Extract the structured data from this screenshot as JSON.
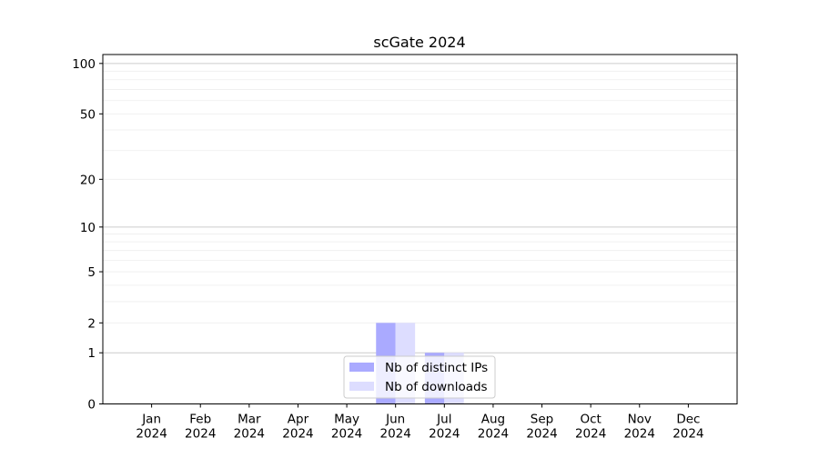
{
  "chart_data": {
    "type": "bar",
    "title": "scGate 2024",
    "xlabel": "",
    "ylabel": "",
    "categories": [
      "Jan\n2024",
      "Feb\n2024",
      "Mar\n2024",
      "Apr\n2024",
      "May\n2024",
      "Jun\n2024",
      "Jul\n2024",
      "Aug\n2024",
      "Sep\n2024",
      "Oct\n2024",
      "Nov\n2024",
      "Dec\n2024"
    ],
    "series": [
      {
        "name": "Nb of distinct IPs",
        "color": "#aaaaff",
        "values": [
          0,
          0,
          0,
          0,
          0,
          2,
          1,
          0,
          0,
          0,
          0,
          0
        ]
      },
      {
        "name": "Nb of downloads",
        "color": "#ddddff",
        "values": [
          0,
          0,
          0,
          0,
          0,
          2,
          1,
          0,
          0,
          0,
          0,
          0
        ]
      }
    ],
    "yscale": "log(1+y)",
    "yticks": [
      0,
      1,
      2,
      5,
      10,
      20,
      50,
      100
    ],
    "ylim": [
      0,
      113
    ],
    "grid": true,
    "legend_placement": "lower center"
  }
}
